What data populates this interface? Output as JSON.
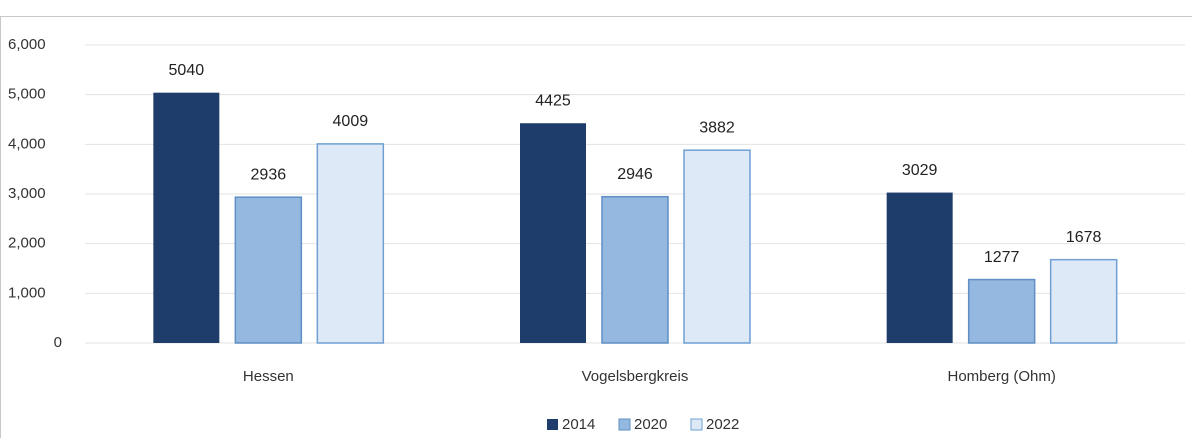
{
  "chart_data": {
    "type": "bar",
    "categories": [
      "Hessen",
      "Vogelsbergkreis",
      "Homberg (Ohm)"
    ],
    "series": [
      {
        "name": "2014",
        "color": "#1f3d6b",
        "values": [
          5040,
          4425,
          3029
        ]
      },
      {
        "name": "2020",
        "color": "#94b8e0",
        "values": [
          2936,
          2946,
          1277
        ]
      },
      {
        "name": "2022",
        "color": "#dde9f7",
        "values": [
          4009,
          3882,
          1678
        ]
      }
    ],
    "ylim": [
      0,
      6000
    ],
    "yticks": [
      0,
      {
        "value": 1000,
        "label": "1,000"
      },
      {
        "value": 2000,
        "label": "2,000"
      },
      {
        "value": 3000,
        "label": "3,000"
      },
      {
        "value": 4000,
        "label": "4,000"
      },
      {
        "value": 5000,
        "label": "5,000"
      },
      {
        "value": 6000,
        "label": "6,000"
      }
    ],
    "grid": true,
    "legend": "bottom"
  }
}
